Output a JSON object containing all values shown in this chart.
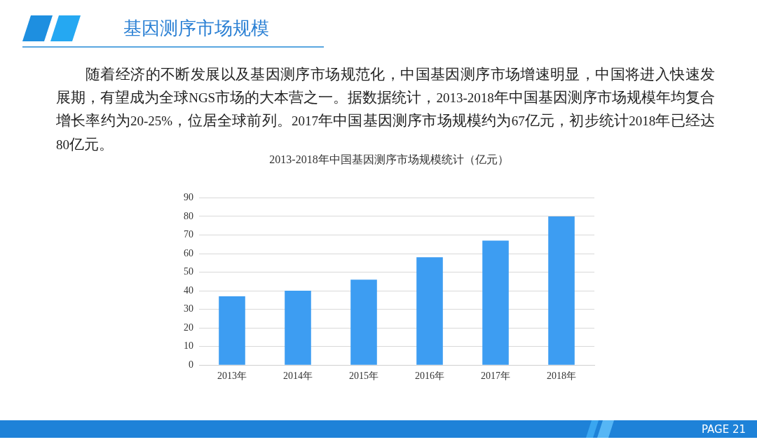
{
  "chart_data": {
    "type": "bar",
    "title": "2013-2018年中国基因测序市场规模统计（亿元）",
    "categories": [
      "2013年",
      "2014年",
      "2015年",
      "2016年",
      "2017年",
      "2018年"
    ],
    "values": [
      37,
      40,
      46,
      58,
      67,
      80
    ],
    "color": "#3d9df2",
    "ylim": [
      0,
      90
    ],
    "yticks": [
      0,
      10,
      20,
      30,
      40,
      50,
      60,
      70,
      80,
      90
    ],
    "grid": "y",
    "annotations": [
      "基因测序市场规模",
      "随着经济的不断发展以及基因测序市场规范化，中国基因测序市场增速明显，中国将进入快速发展期，有望成为全球NGS市场的大本营之一。据数据统计，2013-2018年中国基因测序市场规模年均复合增长率约为20-25%，位居全球前列。2017年中国基因测序市场规模约为67亿元，初步统计2018年已经达80亿元。",
      "PAGE 21"
    ]
  }
}
